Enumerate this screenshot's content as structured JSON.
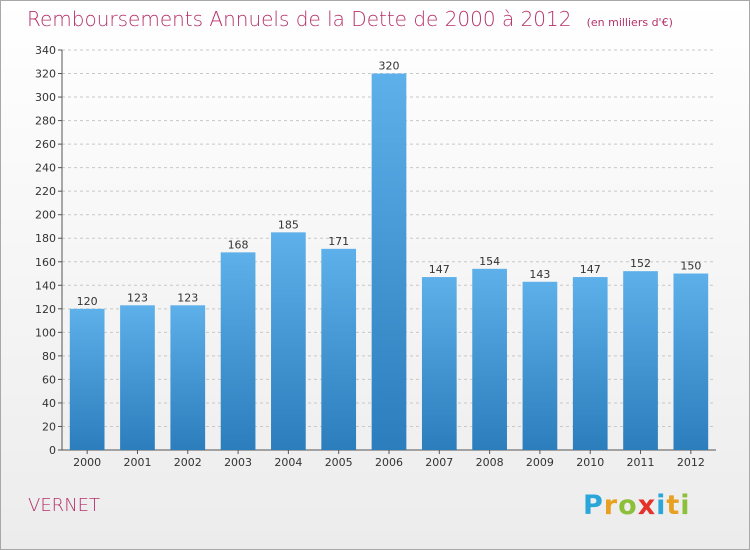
{
  "title": "Remboursements Annuels de la Dette de 2000 à 2012",
  "subtitle": "(en milliers d'€)",
  "commune": "VERNET",
  "logo": {
    "text": "Proxiti",
    "letters": [
      "P",
      "r",
      "o",
      "x",
      "i",
      "t",
      "i"
    ],
    "colors": [
      "#2aa7d8",
      "#e8a020",
      "#8cbf3a",
      "#e4322b",
      "#2aa7d8",
      "#e8a020",
      "#8cbf3a"
    ]
  },
  "colors": {
    "bar_top": "#5eb0ea",
    "bar_bottom": "#2b7dbc",
    "title": "#b5316a",
    "grid": "#c8c8c8"
  },
  "chart_data": {
    "type": "bar",
    "title": "Remboursements Annuels de la Dette de 2000 à 2012",
    "subtitle": "(en milliers d'€)",
    "categories": [
      "2000",
      "2001",
      "2002",
      "2003",
      "2004",
      "2005",
      "2006",
      "2007",
      "2008",
      "2009",
      "2010",
      "2011",
      "2012"
    ],
    "values": [
      120,
      123,
      123,
      168,
      185,
      171,
      320,
      147,
      154,
      143,
      147,
      152,
      150
    ],
    "ylim": [
      0,
      340
    ],
    "yticks": [
      0,
      20,
      40,
      60,
      80,
      100,
      120,
      140,
      160,
      180,
      200,
      220,
      240,
      260,
      280,
      300,
      320,
      340
    ],
    "grid": true,
    "xlabel": "",
    "ylabel": ""
  }
}
